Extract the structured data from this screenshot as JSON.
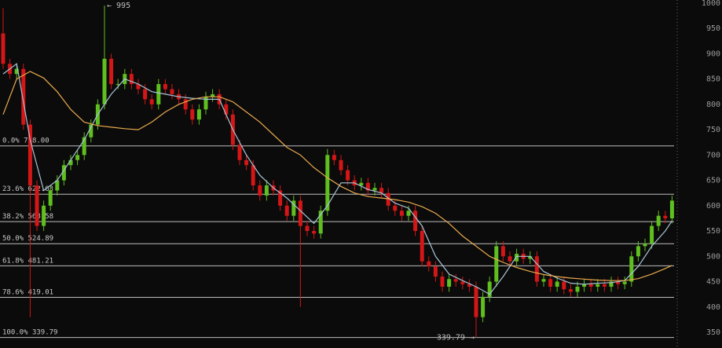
{
  "chart_data": {
    "type": "candlestick",
    "ylim": [
      319,
      1006
    ],
    "yticks": [
      350,
      400,
      450,
      500,
      550,
      600,
      650,
      700,
      750,
      800,
      850,
      900,
      950,
      1000
    ],
    "up_color": "#5fbf1f",
    "down_color": "#d41616",
    "open": [
      940,
      880,
      860,
      870,
      760,
      640,
      560,
      600,
      630,
      650,
      680,
      690,
      700,
      735,
      760,
      800,
      890,
      840,
      840,
      860,
      840,
      830,
      810,
      800,
      840,
      830,
      820,
      810,
      790,
      770,
      790,
      815,
      820,
      800,
      780,
      720,
      690,
      680,
      640,
      620,
      640,
      630,
      600,
      580,
      610,
      560,
      550,
      545,
      590,
      700,
      690,
      670,
      650,
      640,
      645,
      630,
      635,
      625,
      600,
      590,
      580,
      590,
      550,
      490,
      480,
      460,
      440,
      455,
      450,
      445,
      440,
      380,
      420,
      450,
      520,
      500,
      490,
      505,
      495,
      500,
      450,
      455,
      440,
      450,
      435,
      430,
      440,
      445,
      440,
      445,
      440,
      450,
      445,
      450,
      500,
      520,
      525,
      560,
      580,
      575
    ],
    "high": [
      990,
      890,
      880,
      880,
      770,
      650,
      610,
      640,
      660,
      690,
      700,
      710,
      745,
      770,
      810,
      995,
      900,
      850,
      870,
      870,
      850,
      840,
      820,
      850,
      850,
      840,
      830,
      820,
      800,
      800,
      825,
      830,
      830,
      810,
      790,
      730,
      700,
      690,
      650,
      650,
      650,
      640,
      610,
      620,
      620,
      570,
      560,
      600,
      712,
      710,
      700,
      680,
      660,
      655,
      655,
      645,
      645,
      635,
      610,
      600,
      600,
      600,
      560,
      500,
      490,
      470,
      465,
      465,
      460,
      455,
      450,
      430,
      460,
      530,
      530,
      510,
      515,
      515,
      510,
      510,
      465,
      465,
      460,
      460,
      445,
      450,
      455,
      455,
      455,
      455,
      460,
      460,
      460,
      510,
      530,
      535,
      570,
      590,
      590,
      620
    ],
    "low": [
      870,
      850,
      850,
      750,
      380,
      550,
      550,
      590,
      620,
      640,
      670,
      680,
      690,
      725,
      750,
      790,
      830,
      830,
      830,
      830,
      820,
      800,
      790,
      790,
      820,
      810,
      800,
      780,
      760,
      760,
      780,
      805,
      790,
      770,
      710,
      680,
      670,
      630,
      610,
      610,
      620,
      590,
      570,
      570,
      400,
      540,
      535,
      535,
      580,
      680,
      660,
      640,
      630,
      630,
      620,
      620,
      615,
      590,
      580,
      570,
      570,
      540,
      480,
      470,
      450,
      430,
      430,
      440,
      435,
      430,
      339.79,
      370,
      410,
      440,
      490,
      480,
      480,
      485,
      485,
      440,
      440,
      430,
      430,
      425,
      420,
      420,
      430,
      430,
      430,
      430,
      430,
      435,
      435,
      440,
      490,
      510,
      515,
      550,
      565,
      565
    ],
    "close": [
      880,
      860,
      870,
      760,
      640,
      560,
      600,
      630,
      650,
      680,
      690,
      700,
      735,
      760,
      800,
      890,
      840,
      840,
      860,
      840,
      830,
      810,
      800,
      840,
      830,
      820,
      810,
      790,
      770,
      790,
      815,
      820,
      800,
      780,
      720,
      690,
      680,
      640,
      620,
      640,
      630,
      600,
      580,
      610,
      560,
      550,
      545,
      590,
      700,
      690,
      670,
      650,
      640,
      645,
      630,
      635,
      625,
      600,
      590,
      580,
      590,
      550,
      490,
      480,
      460,
      440,
      455,
      450,
      445,
      440,
      380,
      420,
      450,
      520,
      500,
      490,
      505,
      495,
      500,
      450,
      455,
      440,
      450,
      435,
      430,
      440,
      445,
      440,
      445,
      440,
      450,
      445,
      450,
      500,
      520,
      525,
      560,
      580,
      575,
      610
    ],
    "series": [
      {
        "type": "line",
        "color": "#a9c4d8",
        "x": [
          0,
          2,
          4,
          6,
          8,
          10,
          12,
          14,
          16,
          18,
          20,
          22,
          24,
          26,
          28,
          30,
          32,
          34,
          36,
          38,
          40,
          42,
          44,
          46,
          48,
          50,
          52,
          54,
          56,
          58,
          60,
          62,
          64,
          66,
          68,
          70,
          72,
          74,
          76,
          78,
          80,
          82,
          84,
          86,
          88,
          90,
          92,
          94,
          96,
          98,
          99
        ],
        "values": [
          860,
          880,
          730,
          630,
          650,
          690,
          730,
          780,
          820,
          850,
          840,
          825,
          820,
          815,
          812,
          810,
          810,
          750,
          700,
          660,
          635,
          615,
          590,
          565,
          600,
          645,
          645,
          632,
          625,
          605,
          595,
          560,
          500,
          465,
          452,
          440,
          425,
          460,
          500,
          500,
          470,
          457,
          447,
          445,
          447,
          448,
          452,
          480,
          520,
          550,
          570
        ]
      },
      {
        "type": "line",
        "color": "#e8a94f",
        "x": [
          0,
          2,
          4,
          6,
          8,
          10,
          12,
          14,
          16,
          18,
          20,
          22,
          24,
          26,
          28,
          30,
          32,
          34,
          36,
          38,
          40,
          42,
          44,
          46,
          48,
          50,
          52,
          54,
          56,
          58,
          60,
          62,
          64,
          66,
          68,
          70,
          72,
          74,
          76,
          78,
          80,
          82,
          84,
          86,
          88,
          90,
          92,
          94,
          96,
          98,
          99
        ],
        "values": [
          780,
          850,
          865,
          852,
          825,
          790,
          765,
          758,
          755,
          752,
          750,
          765,
          785,
          800,
          810,
          815,
          815,
          805,
          785,
          765,
          740,
          715,
          700,
          675,
          655,
          638,
          625,
          618,
          615,
          612,
          607,
          598,
          585,
          565,
          540,
          520,
          500,
          488,
          478,
          470,
          464,
          460,
          457,
          455,
          453,
          452,
          452,
          456,
          465,
          476,
          482
        ]
      }
    ],
    "fib_levels": [
      {
        "ratio": "0.0%",
        "value": 718,
        "value_label": "718.00"
      },
      {
        "ratio": "23.6%",
        "value": 622.63,
        "value_label": "622.63"
      },
      {
        "ratio": "38.2%",
        "value": 568.58,
        "value_label": "568.58"
      },
      {
        "ratio": "50.0%",
        "value": 524.89,
        "value_label": "524.89"
      },
      {
        "ratio": "61.8%",
        "value": 481.21,
        "value_label": "481.21"
      },
      {
        "ratio": "78.6%",
        "value": 419.01,
        "value_label": "419.01"
      },
      {
        "ratio": "100.0%",
        "value": 339.79,
        "value_label": "339.79"
      }
    ],
    "fib_color": "#bdbdbd",
    "annotations": [
      {
        "label": "← 995",
        "value": 995,
        "index": 15,
        "side": "right"
      },
      {
        "label": "339.79 →",
        "value": 339.79,
        "index": 70,
        "side": "left"
      }
    ]
  }
}
